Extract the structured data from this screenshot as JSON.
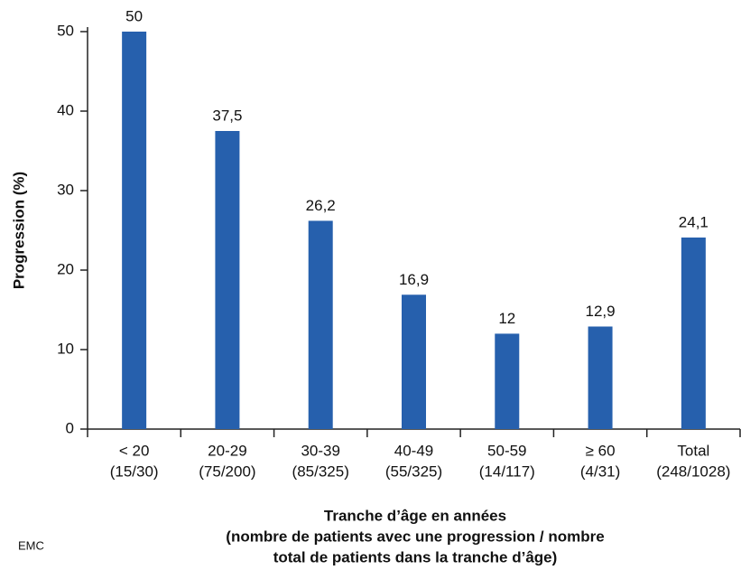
{
  "chart_data": {
    "type": "bar",
    "ylabel": "Progression (%)",
    "xlabel": [
      "Tranche d’âge en années",
      "(nombre de patients avec une progression / nombre",
      "total de patients dans la tranche d’âge)"
    ],
    "categories": [
      [
        "< 20",
        "(15/30)"
      ],
      [
        "20-29",
        "(75/200)"
      ],
      [
        "30-39",
        "(85/325)"
      ],
      [
        "40-49",
        "(55/325)"
      ],
      [
        "50-59",
        "(14/117)"
      ],
      [
        "≥ 60",
        "(4/31)"
      ],
      [
        "Total",
        "(248/1028)"
      ]
    ],
    "values": [
      50,
      37.5,
      26.2,
      16.9,
      12,
      12.9,
      24.1
    ],
    "value_labels": [
      "50",
      "37,5",
      "26,2",
      "16,9",
      "12",
      "12,9",
      "24,1"
    ],
    "color": "#2660ad",
    "ylim": [
      0,
      50
    ],
    "yticks": [
      0,
      10,
      20,
      30,
      40,
      50
    ],
    "logo": "EMC"
  }
}
